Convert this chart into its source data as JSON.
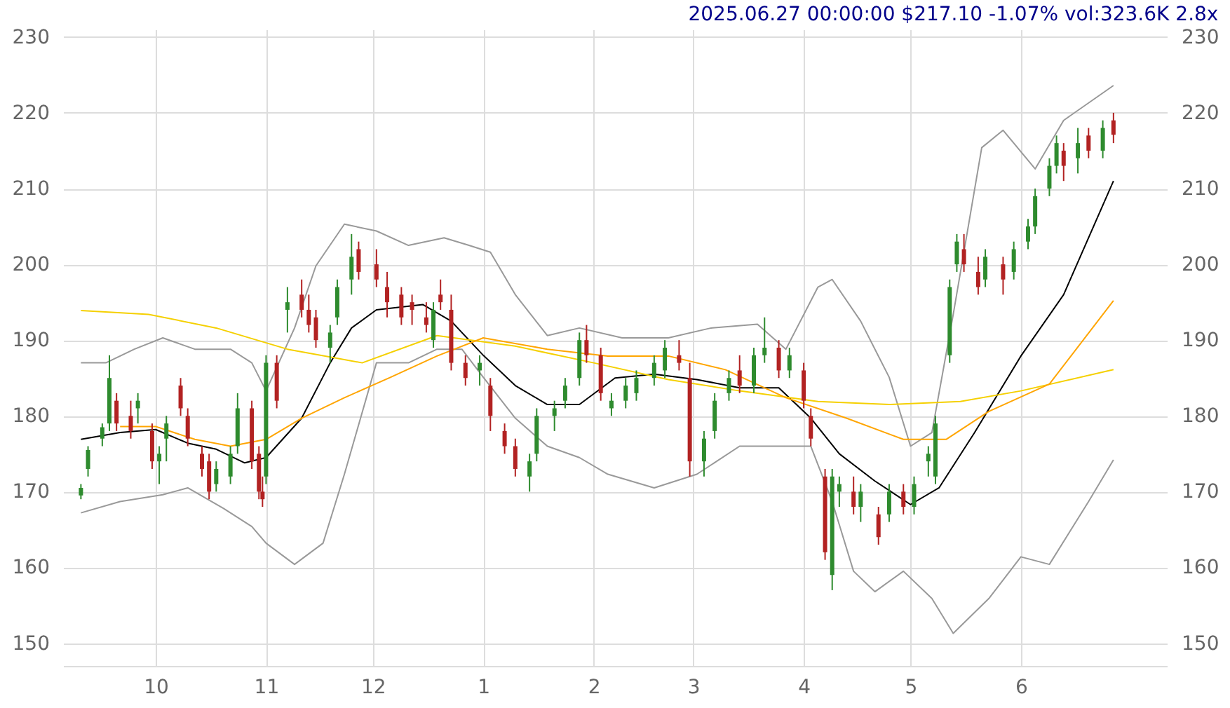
{
  "chart_data": {
    "type": "candlestick",
    "title": "2025.06.27 00:00:00 $217.10 -1.07% vol:323.6K 2.8x",
    "x": [
      "2024-09-10",
      "2024-09-12",
      "2024-09-16",
      "2024-09-18",
      "2024-09-20",
      "2024-09-24",
      "2024-09-26",
      "2024-09-30",
      "2024-10-02",
      "2024-10-04",
      "2024-10-08",
      "2024-10-10",
      "2024-10-14",
      "2024-10-16",
      "2024-10-18",
      "2024-10-22",
      "2024-10-24",
      "2024-10-28",
      "2024-10-30",
      "2024-10-31",
      "2024-11-01",
      "2024-11-04",
      "2024-11-07",
      "2024-11-11",
      "2024-11-13",
      "2024-11-15",
      "2024-11-19",
      "2024-11-21",
      "2024-11-25",
      "2024-11-27",
      "2024-12-02",
      "2024-12-05",
      "2024-12-09",
      "2024-12-12",
      "2024-12-16",
      "2024-12-18",
      "2024-12-20",
      "2024-12-23",
      "2024-12-27",
      "2024-12-31",
      "2025-01-03",
      "2025-01-07",
      "2025-01-10",
      "2025-01-14",
      "2025-01-16",
      "2025-01-21",
      "2025-01-24",
      "2025-01-28",
      "2025-01-30",
      "2025-02-03",
      "2025-02-06",
      "2025-02-10",
      "2025-02-13",
      "2025-02-18",
      "2025-02-21",
      "2025-02-25",
      "2025-02-28",
      "2025-03-04",
      "2025-03-07",
      "2025-03-11",
      "2025-03-14",
      "2025-03-18",
      "2025-03-21",
      "2025-03-25",
      "2025-03-28",
      "2025-04-01",
      "2025-04-03",
      "2025-04-07",
      "2025-04-09",
      "2025-04-11",
      "2025-04-15",
      "2025-04-17",
      "2025-04-22",
      "2025-04-25",
      "2025-04-29",
      "2025-05-02",
      "2025-05-06",
      "2025-05-08",
      "2025-05-12",
      "2025-05-14",
      "2025-05-16",
      "2025-05-20",
      "2025-05-22",
      "2025-05-27",
      "2025-05-30",
      "2025-06-03",
      "2025-06-05",
      "2025-06-09",
      "2025-06-11",
      "2025-06-13",
      "2025-06-17",
      "2025-06-20",
      "2025-06-24",
      "2025-06-27"
    ],
    "ohlc": [
      [
        169.5,
        171,
        169,
        170.5
      ],
      [
        173,
        176,
        172,
        175.5
      ],
      [
        177,
        179,
        176,
        178.5
      ],
      [
        179,
        188,
        178,
        185
      ],
      [
        182,
        183,
        178,
        179
      ],
      [
        180,
        182,
        177,
        178
      ],
      [
        181,
        183,
        179,
        182
      ],
      [
        178,
        179,
        173,
        174
      ],
      [
        174,
        176,
        171,
        175
      ],
      [
        177,
        180,
        174,
        179
      ],
      [
        184,
        185,
        180,
        181
      ],
      [
        180,
        181,
        176,
        177
      ],
      [
        175,
        176,
        172,
        173
      ],
      [
        174,
        175,
        169,
        170
      ],
      [
        171,
        174,
        170,
        173
      ],
      [
        172,
        176,
        171,
        175
      ],
      [
        176,
        183,
        175,
        181
      ],
      [
        181,
        182,
        173,
        174
      ],
      [
        175,
        176,
        169,
        170
      ],
      [
        170,
        172,
        168,
        169
      ],
      [
        172,
        188,
        171,
        187
      ],
      [
        187,
        188,
        181,
        182
      ],
      [
        194,
        197,
        191,
        195
      ],
      [
        196,
        198,
        193,
        194
      ],
      [
        194,
        196,
        191,
        192
      ],
      [
        193,
        194,
        189,
        190
      ],
      [
        189,
        192,
        187,
        191
      ],
      [
        193,
        198,
        192,
        197
      ],
      [
        198,
        204,
        196,
        201
      ],
      [
        202,
        203,
        198,
        199
      ],
      [
        200,
        202,
        197,
        198
      ],
      [
        197,
        199,
        193,
        195
      ],
      [
        196,
        197,
        192,
        193
      ],
      [
        195,
        196,
        192,
        194
      ],
      [
        193,
        195,
        191,
        192
      ],
      [
        190,
        195,
        189,
        194
      ],
      [
        196,
        198,
        194,
        195
      ],
      [
        194,
        196,
        186,
        187
      ],
      [
        187,
        188,
        184,
        185
      ],
      [
        186,
        188,
        184,
        187
      ],
      [
        184,
        185,
        178,
        180
      ],
      [
        178,
        179,
        175,
        176
      ],
      [
        176,
        177,
        172,
        173
      ],
      [
        172,
        175,
        170,
        174
      ],
      [
        175,
        181,
        174,
        180
      ],
      [
        180,
        182,
        178,
        181
      ],
      [
        182,
        185,
        181,
        184
      ],
      [
        185,
        191,
        184,
        190
      ],
      [
        190,
        192,
        187,
        188
      ],
      [
        188,
        189,
        182,
        183
      ],
      [
        181,
        183,
        180,
        182
      ],
      [
        182,
        185,
        181,
        184
      ],
      [
        183,
        186,
        182,
        185
      ],
      [
        185,
        188,
        184,
        187
      ],
      [
        186,
        190,
        185,
        189
      ],
      [
        188,
        190,
        186,
        187
      ],
      [
        185,
        187,
        172,
        174
      ],
      [
        174,
        178,
        172,
        177
      ],
      [
        178,
        183,
        177,
        182
      ],
      [
        183,
        186,
        182,
        185
      ],
      [
        186,
        188,
        183,
        184
      ],
      [
        184,
        189,
        183,
        188
      ],
      [
        188,
        193,
        187,
        189
      ],
      [
        189,
        190,
        185,
        186
      ],
      [
        186,
        189,
        185,
        188
      ],
      [
        186,
        187,
        181,
        182
      ],
      [
        180,
        181,
        176,
        177
      ],
      [
        172,
        173,
        161,
        162
      ],
      [
        159,
        173,
        157,
        172
      ],
      [
        170,
        172,
        168,
        171
      ],
      [
        170,
        172,
        167,
        168
      ],
      [
        168,
        171,
        166,
        170
      ],
      [
        167,
        168,
        163,
        164
      ],
      [
        167,
        171,
        166,
        170
      ],
      [
        170,
        171,
        167,
        168
      ],
      [
        168,
        172,
        167,
        171
      ],
      [
        174,
        176,
        172,
        175
      ],
      [
        172,
        180,
        171,
        179
      ],
      [
        188,
        198,
        187,
        197
      ],
      [
        200,
        204,
        199,
        203
      ],
      [
        202,
        204,
        199,
        200
      ],
      [
        199,
        201,
        196,
        197
      ],
      [
        198,
        202,
        197,
        201
      ],
      [
        200,
        201,
        196,
        198
      ],
      [
        199,
        203,
        198,
        202
      ],
      [
        203,
        206,
        202,
        205
      ],
      [
        205,
        210,
        204,
        209
      ],
      [
        210,
        214,
        209,
        213
      ],
      [
        213,
        217,
        212,
        216
      ],
      [
        215,
        216,
        211,
        213
      ],
      [
        214,
        218,
        212,
        216
      ],
      [
        217,
        218,
        214,
        215
      ],
      [
        215,
        219,
        214,
        218
      ],
      [
        219,
        220,
        216,
        217.1
      ]
    ],
    "series": [
      {
        "type": "line",
        "color": "#000000",
        "x": [
          "2024-09-10",
          "2024-09-21",
          "2024-10-01",
          "2024-10-10",
          "2024-10-18",
          "2024-10-26",
          "2024-11-01",
          "2024-11-11",
          "2024-11-19",
          "2024-11-25",
          "2024-12-02",
          "2024-12-15",
          "2024-12-23",
          "2025-01-01",
          "2025-01-10",
          "2025-01-19",
          "2025-01-28",
          "2025-02-07",
          "2025-02-18",
          "2025-03-02",
          "2025-03-14",
          "2025-03-25",
          "2025-04-03",
          "2025-04-11",
          "2025-04-21",
          "2025-05-01",
          "2025-05-09",
          "2025-05-19",
          "2025-06-01",
          "2025-06-13",
          "2025-06-27"
        ],
        "values": [
          176.9,
          177.8,
          178.2,
          176.4,
          175.6,
          173.8,
          174.5,
          179.7,
          187,
          191.6,
          194,
          194.7,
          192.5,
          188,
          184,
          181.5,
          181.5,
          185,
          185.5,
          184.8,
          183.7,
          183.7,
          179.7,
          175,
          171.4,
          168.3,
          170.5,
          177.8,
          187.9,
          196,
          211
        ]
      },
      {
        "type": "line",
        "color": "#999999",
        "x": [
          "2024-09-10",
          "2024-09-17",
          "2024-09-25",
          "2024-10-03",
          "2024-10-12",
          "2024-10-22",
          "2024-10-28",
          "2024-11-01",
          "2024-11-09",
          "2024-11-15",
          "2024-11-23",
          "2024-12-02",
          "2024-12-11",
          "2024-12-21",
          "2024-12-28",
          "2025-01-03",
          "2025-01-10",
          "2025-01-19",
          "2025-01-28",
          "2025-02-09",
          "2025-02-22",
          "2025-03-06",
          "2025-03-19",
          "2025-03-27",
          "2025-04-05",
          "2025-04-09",
          "2025-04-17",
          "2025-04-25",
          "2025-05-01",
          "2025-05-07",
          "2025-05-13",
          "2025-05-21",
          "2025-05-27",
          "2025-06-05",
          "2025-06-13",
          "2025-06-27"
        ],
        "values": [
          187,
          187,
          188.8,
          190.3,
          188.8,
          188.8,
          187,
          183.3,
          191.6,
          199.8,
          205.3,
          204.4,
          202.5,
          203.5,
          202.5,
          201.6,
          196,
          190.6,
          191.6,
          190.3,
          190.3,
          191.6,
          192.1,
          188.8,
          197,
          198,
          192.5,
          185.1,
          176,
          177.8,
          193.4,
          215.4,
          217.7,
          212.6,
          219,
          223.6
        ]
      },
      {
        "type": "line",
        "color": "#999999",
        "x": [
          "2024-09-10",
          "2024-09-21",
          "2024-10-03",
          "2024-10-10",
          "2024-10-20",
          "2024-10-28",
          "2024-11-01",
          "2024-11-09",
          "2024-11-17",
          "2024-11-23",
          "2024-12-02",
          "2024-12-11",
          "2024-12-19",
          "2024-12-26",
          "2025-01-01",
          "2025-01-10",
          "2025-01-19",
          "2025-01-28",
          "2025-02-05",
          "2025-02-18",
          "2025-03-02",
          "2025-03-14",
          "2025-03-23",
          "2025-04-03",
          "2025-04-09",
          "2025-04-15",
          "2025-04-21",
          "2025-04-29",
          "2025-05-07",
          "2025-05-13",
          "2025-05-23",
          "2025-06-01",
          "2025-06-09",
          "2025-06-20",
          "2025-06-27"
        ],
        "values": [
          167.2,
          168.7,
          169.6,
          170.5,
          167.8,
          165.4,
          163.2,
          160.4,
          163.2,
          172.3,
          187,
          187,
          188.8,
          188.8,
          185.1,
          179.7,
          176,
          174.5,
          172.3,
          170.5,
          172.3,
          176,
          176,
          176,
          168.7,
          159.5,
          156.8,
          159.5,
          155.9,
          151.3,
          155.9,
          161.4,
          160.4,
          168.7,
          174.2
        ]
      },
      {
        "type": "line",
        "color": "#f5d000",
        "x": [
          "2024-09-10",
          "2024-09-29",
          "2024-10-18",
          "2024-11-07",
          "2024-11-28",
          "2024-12-19",
          "2025-01-10",
          "2025-02-01",
          "2025-02-22",
          "2025-03-14",
          "2025-04-05",
          "2025-04-25",
          "2025-05-15",
          "2025-06-01",
          "2025-06-27"
        ],
        "values": [
          193.9,
          193.4,
          191.6,
          188.8,
          187,
          190.6,
          189.2,
          187,
          184.8,
          183.3,
          181.9,
          181.5,
          181.9,
          183.3,
          186.1
        ]
      },
      {
        "type": "line",
        "color": "#ffa500",
        "x": [
          "2024-09-21",
          "2024-10-01",
          "2024-10-12",
          "2024-10-22",
          "2024-11-01",
          "2024-11-11",
          "2024-11-23",
          "2024-12-06",
          "2024-12-19",
          "2025-01-01",
          "2025-01-19",
          "2025-02-05",
          "2025-02-22",
          "2025-03-10",
          "2025-03-27",
          "2025-04-13",
          "2025-04-29",
          "2025-05-11",
          "2025-05-23",
          "2025-06-09",
          "2025-06-27"
        ],
        "values": [
          178.6,
          178.6,
          176.9,
          176,
          176.9,
          179.7,
          182.4,
          185.1,
          187.9,
          190.3,
          188.8,
          187.9,
          187.9,
          186.1,
          182.4,
          179.7,
          176.9,
          176.9,
          180.6,
          184.2,
          195.2
        ]
      }
    ],
    "xlim": [
      "2024-09-05",
      "2025-07-12"
    ],
    "xticks": [
      {
        "value": "2024-10-01",
        "label": "10"
      },
      {
        "value": "2024-11-01",
        "label": "11"
      },
      {
        "value": "2024-12-01",
        "label": "12"
      },
      {
        "value": "2025-01-01",
        "label": "1"
      },
      {
        "value": "2025-02-01",
        "label": "2"
      },
      {
        "value": "2025-03-01",
        "label": "3"
      },
      {
        "value": "2025-04-01",
        "label": "4"
      },
      {
        "value": "2025-05-01",
        "label": "5"
      },
      {
        "value": "2025-06-01",
        "label": "6"
      }
    ],
    "ylim": [
      147,
      231
    ],
    "yticks": [
      150,
      160,
      170,
      180,
      190,
      200,
      210,
      220,
      230
    ],
    "y2lim": [
      147,
      231
    ],
    "y2ticks": [
      150,
      160,
      170,
      180,
      190,
      200,
      210,
      220,
      230
    ],
    "grid": true
  }
}
